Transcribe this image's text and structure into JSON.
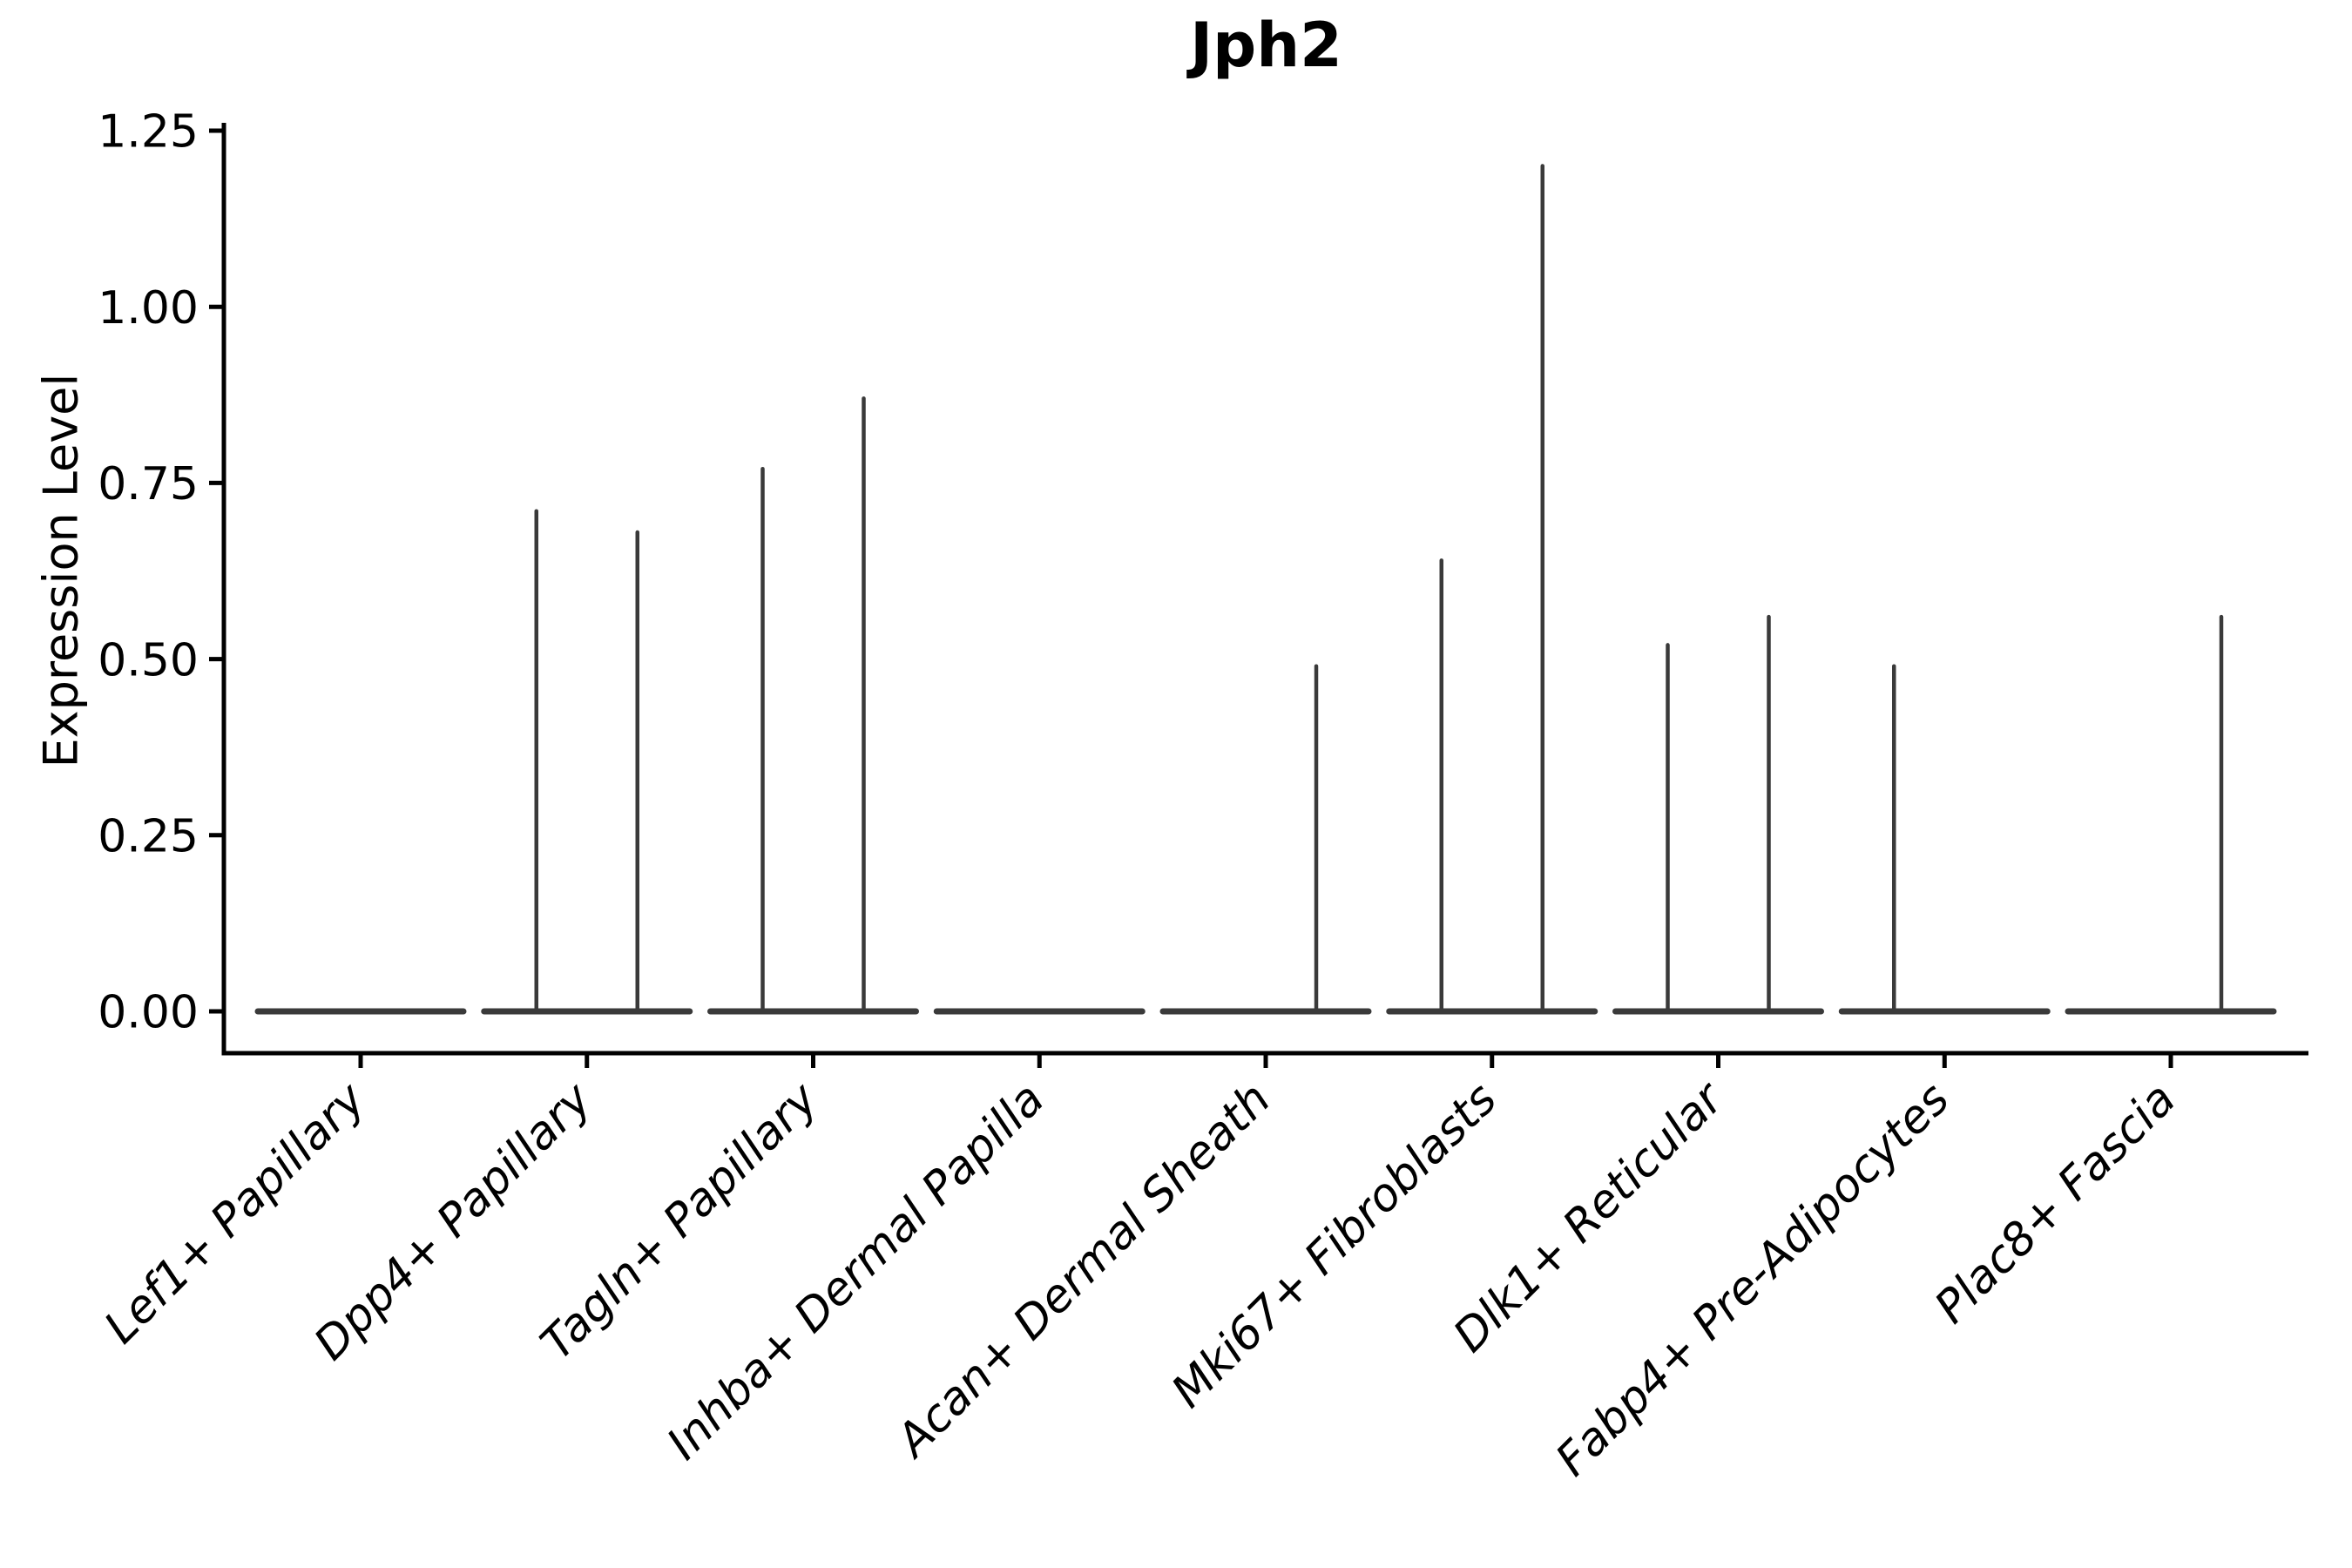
{
  "chart_data": {
    "type": "violin",
    "title": "Jph2",
    "ylabel": "Expression Level",
    "xlabel": "",
    "ylim": [
      0,
      1.25
    ],
    "yticks": [
      "0.00",
      "0.25",
      "0.50",
      "0.75",
      "1.00",
      "1.25"
    ],
    "ytick_values": [
      0,
      0.25,
      0.5,
      0.75,
      1.0,
      1.25
    ],
    "categories": [
      "Lef1+ Papillary",
      "Dpp4+ Papillary",
      "Tagln+ Papillary",
      "Inhba+ Dermal Papilla",
      "Acan+ Dermal Sheath",
      "Mki67+ Fibroblasts",
      "Dlk1+ Reticular",
      "Fabp4+ Pre-Adipocytes",
      "Plac8+ Fascia"
    ],
    "series": [
      {
        "name": "left-violin",
        "max_expression": [
          0,
          0.71,
          0.77,
          0,
          0,
          0.64,
          0.52,
          0.49,
          0
        ]
      },
      {
        "name": "right-violin",
        "max_expression": [
          0,
          0.68,
          0.87,
          0,
          0.49,
          1.2,
          0.56,
          0,
          0.56
        ]
      }
    ],
    "legend": "none",
    "grid": false,
    "violin_color": "#3a3a3a",
    "axis_color": "#000000"
  }
}
